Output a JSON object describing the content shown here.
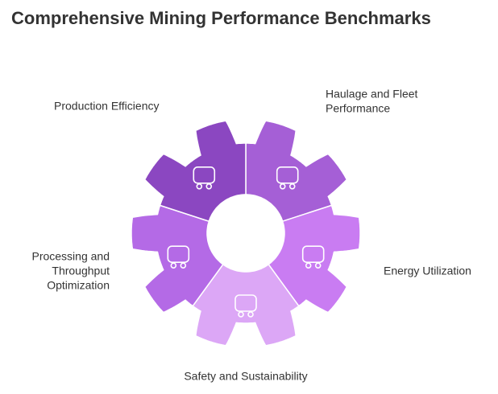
{
  "title": "Comprehensive Mining Performance Benchmarks",
  "segments": [
    {
      "label": [
        "Haulage and Fleet",
        "Performance"
      ]
    },
    {
      "label": [
        "Energy Utilization"
      ]
    },
    {
      "label": [
        "Safety and Sustainability"
      ]
    },
    {
      "label": [
        "Processing and",
        "Throughput",
        "Optimization"
      ]
    },
    {
      "label": [
        "Production Efficiency"
      ]
    }
  ]
}
